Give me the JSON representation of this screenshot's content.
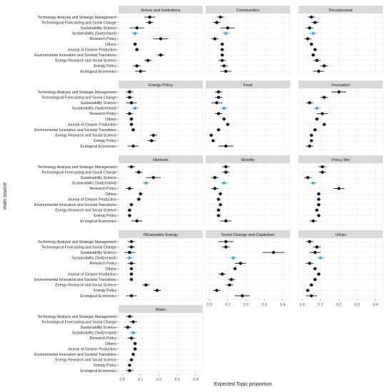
{
  "chart_data": {
    "type": "scatter",
    "subtype": "point-range facet grid",
    "xlabel": "Expected Topic proportion",
    "ylabel": "main source",
    "xlim": [
      -0.02,
      0.44
    ],
    "xticks": [
      0.0,
      0.1,
      0.2,
      0.3,
      0.4
    ],
    "xtick_labels": [
      "0.0",
      "0.1",
      "0.2",
      "0.3",
      "0.4"
    ],
    "grid": true,
    "highlight_category": "Sustainability (Switzerland)",
    "colors": {
      "point": "#0d1b2e",
      "highlight": "#4da6e8",
      "panel_bg": "#ffffff",
      "strip_bg": "#d9d9d9",
      "grid": "#ebebeb"
    },
    "categories": [
      "Technology Analysis and Strategic Management",
      "Technological Forecasting and Social Change",
      "Sustainability Science",
      "Sustainability (Switzerland)",
      "Research Policy",
      "Others",
      "Journal of Cleaner Production",
      "Environmental Innovation and Societal Transitions",
      "Energy Research and Social Science",
      "Energy Policy",
      "Ecological Economics"
    ],
    "panels": [
      {
        "title": "Actors and Institutions",
        "values": [
          0.15,
          0.15,
          0.08,
          0.07,
          0.21,
          0.07,
          0.08,
          0.21,
          0.14,
          0.08,
          0.1
        ],
        "ci_low": [
          0.12,
          0.13,
          0.04,
          0.05,
          0.17,
          0.06,
          0.07,
          0.19,
          0.12,
          0.06,
          0.07
        ],
        "ci_high": [
          0.18,
          0.17,
          0.12,
          0.09,
          0.25,
          0.08,
          0.09,
          0.23,
          0.16,
          0.1,
          0.13
        ]
      },
      {
        "title": "Communities",
        "values": [
          0.06,
          0.04,
          0.1,
          0.09,
          0.03,
          0.07,
          0.07,
          0.07,
          0.07,
          0.08,
          0.09
        ],
        "ci_low": [
          0.04,
          0.02,
          0.06,
          0.07,
          0.01,
          0.06,
          0.06,
          0.06,
          0.05,
          0.06,
          0.06
        ],
        "ci_high": [
          0.08,
          0.06,
          0.14,
          0.11,
          0.05,
          0.08,
          0.08,
          0.08,
          0.09,
          0.1,
          0.12
        ]
      },
      {
        "title": "Decarbonizat",
        "values": [
          0.05,
          0.07,
          0.04,
          0.06,
          0.03,
          0.05,
          0.07,
          0.06,
          0.08,
          0.12,
          0.09
        ],
        "ci_low": [
          0.03,
          0.05,
          0.02,
          0.04,
          0.01,
          0.04,
          0.06,
          0.05,
          0.06,
          0.1,
          0.06
        ],
        "ci_high": [
          0.07,
          0.09,
          0.06,
          0.08,
          0.05,
          0.06,
          0.08,
          0.07,
          0.1,
          0.14,
          0.12
        ]
      },
      {
        "title": "Energy Policy",
        "values": [
          0.04,
          0.04,
          0.05,
          0.07,
          0.04,
          0.05,
          0.05,
          0.06,
          0.17,
          0.16,
          0.06
        ],
        "ci_low": [
          0.02,
          0.02,
          0.02,
          0.05,
          0.02,
          0.04,
          0.04,
          0.05,
          0.15,
          0.14,
          0.03
        ],
        "ci_high": [
          0.06,
          0.06,
          0.08,
          0.09,
          0.06,
          0.06,
          0.06,
          0.07,
          0.19,
          0.18,
          0.09
        ]
      },
      {
        "title": "Food",
        "values": [
          0.05,
          0.05,
          0.04,
          0.08,
          0.05,
          0.08,
          0.1,
          0.05,
          0.01,
          0.02,
          0.09
        ],
        "ci_low": [
          0.03,
          0.03,
          0.01,
          0.06,
          0.03,
          0.07,
          0.09,
          0.04,
          0.0,
          0.01,
          0.05
        ],
        "ci_high": [
          0.07,
          0.07,
          0.07,
          0.1,
          0.07,
          0.09,
          0.11,
          0.06,
          0.02,
          0.03,
          0.13
        ]
      },
      {
        "title": "Innovation",
        "values": [
          0.2,
          0.12,
          0.04,
          0.08,
          0.11,
          0.08,
          0.12,
          0.07,
          0.05,
          0.05,
          0.04
        ],
        "ci_low": [
          0.16,
          0.1,
          0.02,
          0.06,
          0.08,
          0.07,
          0.11,
          0.06,
          0.04,
          0.04,
          0.02
        ],
        "ci_high": [
          0.24,
          0.14,
          0.06,
          0.1,
          0.14,
          0.09,
          0.13,
          0.08,
          0.06,
          0.06,
          0.06
        ]
      },
      {
        "title": "Methods",
        "values": [
          0.05,
          0.09,
          0.17,
          0.13,
          0.04,
          0.1,
          0.09,
          0.05,
          0.04,
          0.04,
          0.08
        ],
        "ci_low": [
          0.03,
          0.07,
          0.13,
          0.11,
          0.02,
          0.09,
          0.08,
          0.04,
          0.03,
          0.03,
          0.05
        ],
        "ci_high": [
          0.07,
          0.11,
          0.21,
          0.15,
          0.06,
          0.11,
          0.1,
          0.06,
          0.05,
          0.05,
          0.11
        ]
      },
      {
        "title": "Mobility",
        "values": [
          0.09,
          0.09,
          0.03,
          0.08,
          0.03,
          0.06,
          0.05,
          0.06,
          0.05,
          0.05,
          0.09
        ],
        "ci_low": [
          0.07,
          0.07,
          0.01,
          0.06,
          0.01,
          0.05,
          0.04,
          0.05,
          0.04,
          0.04,
          0.06
        ],
        "ci_high": [
          0.11,
          0.11,
          0.05,
          0.1,
          0.05,
          0.07,
          0.06,
          0.07,
          0.06,
          0.06,
          0.12
        ]
      },
      {
        "title": "Policy Mix",
        "values": [
          0.11,
          0.11,
          0.03,
          0.06,
          0.2,
          0.09,
          0.09,
          0.09,
          0.08,
          0.09,
          0.06
        ],
        "ci_low": [
          0.09,
          0.09,
          0.01,
          0.04,
          0.17,
          0.08,
          0.08,
          0.08,
          0.07,
          0.08,
          0.04
        ],
        "ci_high": [
          0.13,
          0.13,
          0.05,
          0.08,
          0.23,
          0.1,
          0.1,
          0.1,
          0.09,
          0.1,
          0.08
        ]
      },
      {
        "title": "REnewable Energy",
        "values": [
          0.05,
          0.05,
          0.04,
          0.04,
          0.05,
          0.05,
          0.05,
          0.05,
          0.13,
          0.19,
          0.05
        ],
        "ci_low": [
          0.03,
          0.03,
          0.01,
          0.02,
          0.03,
          0.04,
          0.04,
          0.04,
          0.11,
          0.17,
          0.02
        ],
        "ci_high": [
          0.07,
          0.07,
          0.07,
          0.06,
          0.07,
          0.06,
          0.06,
          0.06,
          0.15,
          0.21,
          0.08
        ]
      },
      {
        "title": "Social Change and Capitalism",
        "values": [
          0.09,
          0.09,
          0.35,
          0.13,
          0.17,
          0.14,
          0.07,
          0.12,
          0.11,
          0.04,
          0.18
        ],
        "ci_low": [
          0.05,
          0.07,
          0.29,
          0.11,
          0.14,
          0.13,
          0.05,
          0.1,
          0.09,
          0.02,
          0.14
        ],
        "ci_high": [
          0.13,
          0.11,
          0.41,
          0.15,
          0.2,
          0.15,
          0.09,
          0.14,
          0.13,
          0.06,
          0.22
        ]
      },
      {
        "title": "Urban",
        "values": [
          0.04,
          0.08,
          0.07,
          0.1,
          0.04,
          0.07,
          0.09,
          0.07,
          0.05,
          0.03,
          0.05
        ],
        "ci_low": [
          0.02,
          0.06,
          0.04,
          0.08,
          0.02,
          0.06,
          0.08,
          0.06,
          0.04,
          0.02,
          0.02
        ],
        "ci_high": [
          0.06,
          0.1,
          0.1,
          0.12,
          0.06,
          0.08,
          0.1,
          0.08,
          0.06,
          0.04,
          0.08
        ]
      },
      {
        "title": "Water",
        "values": [
          0.04,
          0.06,
          0.03,
          0.06,
          0.05,
          0.07,
          0.07,
          0.06,
          0.05,
          0.04,
          0.04
        ],
        "ci_low": [
          0.02,
          0.04,
          0.01,
          0.04,
          0.03,
          0.06,
          0.06,
          0.05,
          0.04,
          0.03,
          0.02
        ],
        "ci_high": [
          0.06,
          0.08,
          0.05,
          0.08,
          0.07,
          0.08,
          0.08,
          0.07,
          0.06,
          0.05,
          0.06
        ]
      }
    ]
  }
}
